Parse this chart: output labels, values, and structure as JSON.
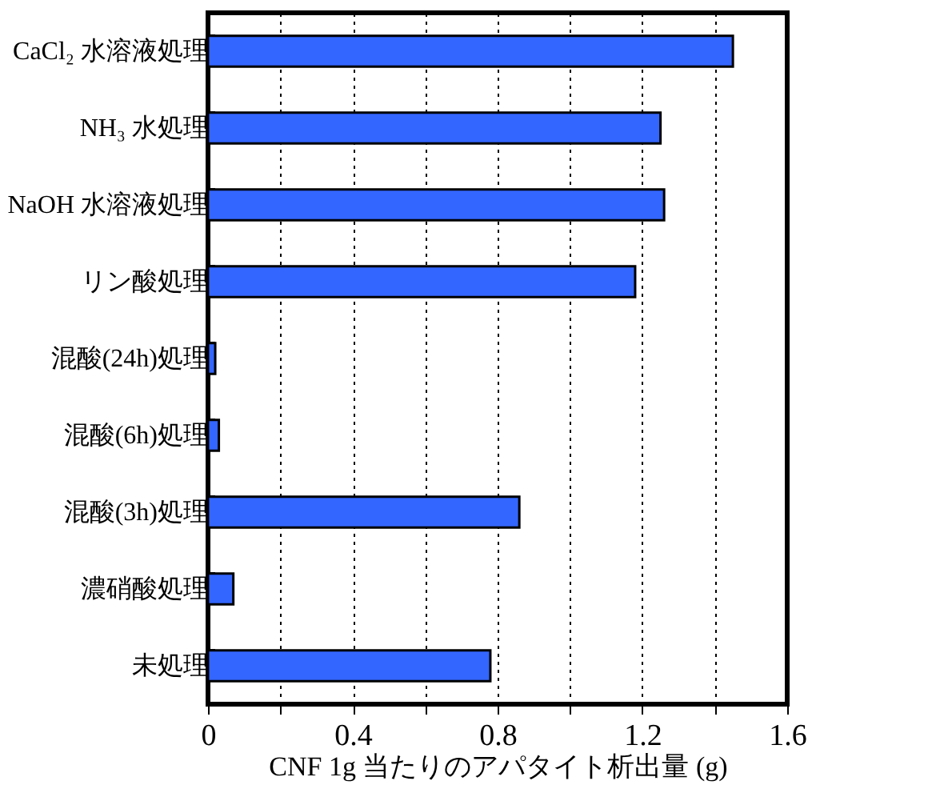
{
  "chart_data": {
    "type": "bar",
    "orientation": "horizontal",
    "xlabel": "CNF 1g 当たりのアパタイト析出量 (g)",
    "categories": [
      "CaCl₂ 水溶液処理",
      "NH₃ 水処理",
      "NaOH 水溶液処理",
      "リン酸処理",
      "混酸(24h)処理",
      "混酸(6h)処理",
      "混酸(3h)処理",
      "濃硝酸処理",
      "未処理"
    ],
    "values": [
      1.45,
      1.25,
      1.26,
      1.18,
      0.02,
      0.03,
      0.86,
      0.07,
      0.78
    ],
    "color": "#3366ff",
    "xlim": [
      0,
      1.6
    ],
    "xticks": [
      0,
      {
        "value": 0.2,
        "label": null
      },
      0.4,
      {
        "value": 0.6,
        "label": null
      },
      0.8,
      {
        "value": 1.0,
        "label": null
      },
      1.2,
      {
        "value": 1.4,
        "label": null
      },
      1.6
    ],
    "grid": "x"
  }
}
